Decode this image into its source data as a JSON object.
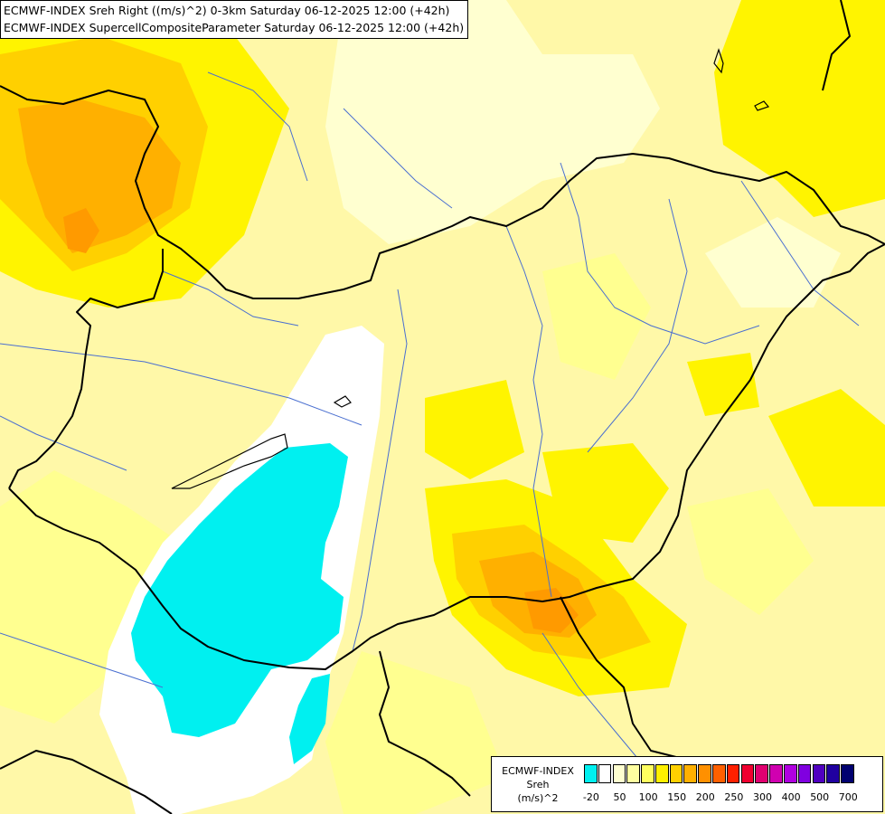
{
  "header": {
    "line1": "ECMWF-INDEX Sreh Right ((m/s)^2) 0-3km Saturday 06-12-2025 12:00 (+42h)",
    "line2": "ECMWF-INDEX SupercellCompositeParameter Saturday 06-12-2025 12:00 (+42h)"
  },
  "legend": {
    "title": "ECMWF-INDEX",
    "variable": "Sreh",
    "unit": "(m/s)^2",
    "colors": [
      "#00f0f0",
      "#ffffff",
      "#ffffd0",
      "#ffffa0",
      "#ffff60",
      "#fff000",
      "#ffd000",
      "#ffb000",
      "#ff9000",
      "#ff6000",
      "#ff2000",
      "#f00030",
      "#e00070",
      "#d000b0",
      "#b000e0",
      "#8000e0",
      "#5000c0",
      "#2000a0",
      "#000070"
    ],
    "ticks": [
      {
        "label": "-20",
        "index": 0
      },
      {
        "label": "50",
        "index": 2
      },
      {
        "label": "100",
        "index": 4
      },
      {
        "label": "150",
        "index": 6
      },
      {
        "label": "200",
        "index": 8
      },
      {
        "label": "250",
        "index": 10
      },
      {
        "label": "300",
        "index": 12
      },
      {
        "label": "400",
        "index": 14
      },
      {
        "label": "500",
        "index": 16
      },
      {
        "label": "700",
        "index": 18
      }
    ]
  },
  "map_colors": {
    "background": "#fff8a8",
    "very_light": "#ffffd0",
    "light_yellow": "#ffff90",
    "yellow": "#fff400",
    "gold": "#ffd000",
    "orange": "#ffb000",
    "dark_orange": "#ff9a00",
    "white": "#ffffff",
    "cyan": "#00f0f0",
    "border": "#000000",
    "river": "#4a6fd0"
  }
}
